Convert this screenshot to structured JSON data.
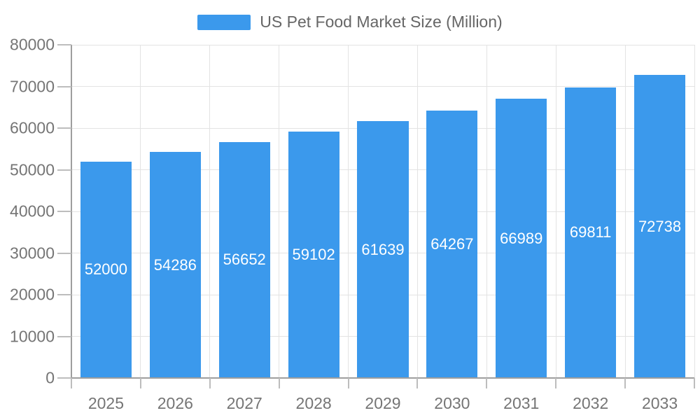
{
  "legend": {
    "label": "US Pet Food Market Size (Million)"
  },
  "colors": {
    "bar": "#3b99ec",
    "bar_label_text": "#ffffff",
    "axis_line": "#9e9e9e",
    "grid_line": "#e3e3e3",
    "tick_line": "#bdbdbd",
    "tick_text": "#757575",
    "legend_text": "#666666",
    "background": "#ffffff"
  },
  "chart_data": {
    "type": "bar",
    "title": "US Pet Food Market Size (Million)",
    "categories": [
      "2025",
      "2026",
      "2027",
      "2028",
      "2029",
      "2030",
      "2031",
      "2032",
      "2033"
    ],
    "values": [
      52000,
      54286,
      56652,
      59102,
      61639,
      64267,
      66989,
      69811,
      72738
    ],
    "series_name": "US Pet Food Market Size (Million)",
    "xlabel": "",
    "ylabel": "",
    "ylim": [
      0,
      80000
    ],
    "y_ticks": [
      0,
      10000,
      20000,
      30000,
      40000,
      50000,
      60000,
      70000,
      80000
    ],
    "grid": true,
    "legend_position": "top-center",
    "bar_label_position": "inside-center"
  }
}
